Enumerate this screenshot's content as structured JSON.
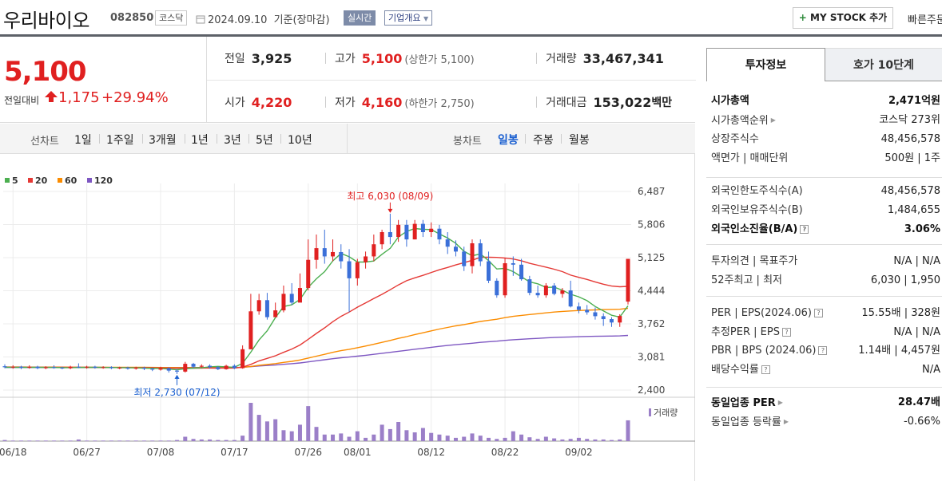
{
  "header": {
    "company_name": "우리바이오",
    "stock_code": "082850",
    "market": "코스닥",
    "date": "2024.09.10",
    "date_suffix": "기준(장마감)",
    "realtime_label": "실시간",
    "overview_label": "기업개요",
    "mystock_label": "MY STOCK 추가",
    "quick_label": "빠른주문"
  },
  "summary": {
    "price": "5,100",
    "change_label": "전일대비",
    "change_amount": "1,175",
    "change_rate": "+29.94%",
    "prev_close": {
      "label": "전일",
      "value": "3,925"
    },
    "high": {
      "label": "고가",
      "value": "5,100",
      "sub": "(상한가 5,100)"
    },
    "volume": {
      "label": "거래량",
      "value": "33,467,341"
    },
    "open": {
      "label": "시가",
      "value": "4,220"
    },
    "low": {
      "label": "저가",
      "value": "4,160",
      "sub": "(하한가 2,750)"
    },
    "amount": {
      "label": "거래대금",
      "value": "153,022",
      "unit": "백만"
    }
  },
  "period_tabs": {
    "label": "선차트",
    "items": [
      "1일",
      "1주일",
      "3개월",
      "1년",
      "3년",
      "5년",
      "10년"
    ]
  },
  "candle_tabs": {
    "label": "봉차트",
    "items": [
      "일봉",
      "주봉",
      "월봉"
    ],
    "active": 0
  },
  "chart_data": {
    "type": "candlestick",
    "legend": [
      {
        "name": "5",
        "color": "#4caf50"
      },
      {
        "name": "20",
        "color": "#e53935"
      },
      {
        "name": "60",
        "color": "#fb8c00"
      },
      {
        "name": "120",
        "color": "#7e57c2"
      }
    ],
    "y_ticks": [
      "6,487",
      "5,806",
      "5,125",
      "4,444",
      "3,762",
      "3,081",
      "2,400"
    ],
    "ylim": [
      2400,
      6487
    ],
    "x_ticks": [
      "06/18",
      "06/27",
      "07/08",
      "07/17",
      "07/26",
      "08/01",
      "08/12",
      "08/22",
      "09/02"
    ],
    "high_annotation": "최고 6,030 (08/09)",
    "low_annotation": "최저 2,730 (07/12)",
    "volume_label": "거래량",
    "colors": {
      "up": "#e02020",
      "down": "#3a6fd8",
      "volume": "#9b7fc8"
    },
    "candles": [
      [
        2890,
        2870,
        2930,
        2850
      ],
      [
        2870,
        2880,
        2910,
        2840
      ],
      [
        2880,
        2860,
        2900,
        2830
      ],
      [
        2860,
        2880,
        2910,
        2840
      ],
      [
        2880,
        2850,
        2900,
        2830
      ],
      [
        2850,
        2870,
        2890,
        2830
      ],
      [
        2870,
        2860,
        2910,
        2840
      ],
      [
        2860,
        2850,
        2880,
        2830
      ],
      [
        2850,
        2880,
        2900,
        2830
      ],
      [
        2880,
        2870,
        2950,
        2850
      ],
      [
        2870,
        2880,
        2900,
        2840
      ],
      [
        2880,
        2860,
        2900,
        2840
      ],
      [
        2860,
        2870,
        2890,
        2840
      ],
      [
        2870,
        2850,
        2890,
        2830
      ],
      [
        2850,
        2860,
        2880,
        2830
      ],
      [
        2860,
        2840,
        2880,
        2820
      ],
      [
        2840,
        2860,
        2880,
        2820
      ],
      [
        2860,
        2840,
        2880,
        2810
      ],
      [
        2840,
        2820,
        2860,
        2790
      ],
      [
        2820,
        2850,
        2880,
        2800
      ],
      [
        2850,
        2800,
        2870,
        2760
      ],
      [
        2800,
        2780,
        2830,
        2730
      ],
      [
        2780,
        2940,
        2980,
        2760
      ],
      [
        2940,
        2880,
        2960,
        2850
      ],
      [
        2880,
        2900,
        2930,
        2860
      ],
      [
        2900,
        2870,
        2930,
        2840
      ],
      [
        2870,
        2830,
        2890,
        2810
      ],
      [
        2830,
        2900,
        2920,
        2820
      ],
      [
        2900,
        2850,
        2930,
        2830
      ],
      [
        2850,
        3240,
        3320,
        2840
      ],
      [
        3240,
        4020,
        4380,
        3240
      ],
      [
        4020,
        4250,
        4380,
        3950
      ],
      [
        4250,
        3900,
        4400,
        3850
      ],
      [
        3900,
        4040,
        4200,
        3950
      ],
      [
        4040,
        4380,
        4550,
        4000
      ],
      [
        4380,
        4200,
        4600,
        4150
      ],
      [
        4200,
        4500,
        4800,
        4300
      ],
      [
        4500,
        5080,
        5500,
        4450
      ],
      [
        5080,
        5320,
        5600,
        4900
      ],
      [
        5320,
        5150,
        5700,
        5000
      ],
      [
        5150,
        5240,
        5500,
        5050
      ],
      [
        5240,
        5050,
        5400,
        4900
      ],
      [
        5050,
        4700,
        5300,
        4000
      ],
      [
        4700,
        5030,
        5100,
        4550
      ],
      [
        5030,
        5150,
        5250,
        4900
      ],
      [
        5150,
        5400,
        5600,
        5050
      ],
      [
        5400,
        5650,
        5700,
        5300
      ],
      [
        5650,
        5550,
        6030,
        5400
      ],
      [
        5550,
        5800,
        5900,
        5450
      ],
      [
        5800,
        5500,
        5900,
        5350
      ],
      [
        5500,
        5820,
        5900,
        5500
      ],
      [
        5820,
        5650,
        5900,
        5550
      ],
      [
        5650,
        5720,
        5850,
        5550
      ],
      [
        5720,
        5500,
        5800,
        5400
      ],
      [
        5500,
        5350,
        5650,
        5200
      ],
      [
        5350,
        5250,
        5480,
        5150
      ],
      [
        5250,
        4950,
        5350,
        4850
      ],
      [
        4950,
        5420,
        5500,
        4800
      ],
      [
        5420,
        5050,
        5500,
        4950
      ],
      [
        5050,
        4650,
        5250,
        4600
      ],
      [
        4650,
        4350,
        4700,
        4300
      ],
      [
        4350,
        5010,
        5120,
        4300
      ],
      [
        5010,
        4980,
        5150,
        4750
      ],
      [
        4980,
        4680,
        5100,
        4650
      ],
      [
        4680,
        4400,
        4750,
        4350
      ],
      [
        4400,
        4350,
        4550,
        4300
      ],
      [
        4350,
        4550,
        4600,
        4300
      ],
      [
        4550,
        4380,
        4600,
        4350
      ],
      [
        4380,
        4450,
        4500,
        4300
      ],
      [
        4450,
        4120,
        4650,
        4100
      ],
      [
        4120,
        4050,
        4200,
        3980
      ],
      [
        4050,
        4000,
        4150,
        3950
      ],
      [
        4000,
        3920,
        4100,
        3850
      ],
      [
        3920,
        3860,
        3980,
        3720
      ],
      [
        3860,
        3790,
        3900,
        3700
      ],
      [
        3790,
        3925,
        3960,
        3700
      ],
      [
        4220,
        5100,
        5100,
        4160
      ]
    ],
    "ma5": [
      2870,
      2870,
      2868,
      2868,
      2870,
      2866,
      2866,
      2862,
      2862,
      2864,
      2868,
      2870,
      2866,
      2864,
      2862,
      2858,
      2856,
      2852,
      2846,
      2844,
      2832,
      2818,
      2838,
      2852,
      2860,
      2878,
      2888,
      2876,
      2870,
      2950,
      3180,
      3430,
      3620,
      3890,
      4118,
      4154,
      4264,
      4512,
      4690,
      4838,
      5058,
      5212,
      5142,
      5034,
      5034,
      5056,
      5194,
      5316,
      5550,
      5664,
      5724,
      5708,
      5702,
      5612,
      5528,
      5418,
      5256,
      5164,
      5200,
      5064,
      4892,
      4904,
      4838,
      4730,
      4628,
      4586,
      4512,
      4518,
      4454,
      4372,
      4318,
      4240,
      4120,
      4030,
      3940,
      3902,
      4134
    ],
    "ma20": [
      2872,
      2872,
      2872,
      2871,
      2871,
      2870,
      2869,
      2868,
      2868,
      2867,
      2867,
      2866,
      2866,
      2865,
      2864,
      2863,
      2861,
      2860,
      2858,
      2856,
      2853,
      2849,
      2850,
      2851,
      2852,
      2853,
      2852,
      2854,
      2853,
      2871,
      2929,
      3000,
      3051,
      3106,
      3176,
      3243,
      3328,
      3444,
      3566,
      3681,
      3806,
      3916,
      4006,
      4105,
      4194,
      4283,
      4370,
      4465,
      4564,
      4650,
      4710,
      4761,
      4820,
      4875,
      4922,
      4976,
      5022,
      5071,
      5133,
      5133,
      5130,
      5117,
      5096,
      5060,
      5008,
      4968,
      4930,
      4886,
      4837,
      4766,
      4719,
      4677,
      4626,
      4578,
      4541,
      4525,
      4533
    ],
    "ma60": [
      2875,
      2874,
      2874,
      2873,
      2873,
      2873,
      2872,
      2872,
      2871,
      2871,
      2870,
      2870,
      2870,
      2869,
      2869,
      2868,
      2867,
      2867,
      2866,
      2865,
      2864,
      2863,
      2862,
      2862,
      2862,
      2862,
      2861,
      2861,
      2861,
      2867,
      2886,
      2909,
      2926,
      2945,
      2970,
      2991,
      3018,
      3058,
      3098,
      3135,
      3176,
      3211,
      3238,
      3272,
      3306,
      3342,
      3381,
      3421,
      3463,
      3500,
      3542,
      3578,
      3618,
      3655,
      3689,
      3721,
      3748,
      3779,
      3812,
      3835,
      3858,
      3890,
      3916,
      3937,
      3954,
      3971,
      3989,
      4005,
      4019,
      4028,
      4036,
      4044,
      4050,
      4056,
      4059,
      4063,
      4082
    ],
    "ma120": [
      2864,
      2864,
      2864,
      2864,
      2864,
      2864,
      2864,
      2864,
      2864,
      2864,
      2864,
      2864,
      2864,
      2864,
      2864,
      2864,
      2864,
      2864,
      2864,
      2864,
      2864,
      2864,
      2864,
      2864,
      2864,
      2864,
      2864,
      2864,
      2864,
      2869,
      2881,
      2895,
      2905,
      2915,
      2930,
      2943,
      2958,
      2980,
      3002,
      3023,
      3045,
      3064,
      3079,
      3098,
      3116,
      3135,
      3156,
      3176,
      3198,
      3218,
      3240,
      3259,
      3280,
      3299,
      3317,
      3334,
      3348,
      3364,
      3381,
      3394,
      3406,
      3422,
      3435,
      3446,
      3455,
      3463,
      3473,
      3481,
      3488,
      3493,
      3498,
      3503,
      3506,
      3510,
      3512,
      3514,
      3524
    ],
    "volume": [
      2,
      1,
      1,
      1,
      1,
      1,
      1,
      1,
      1,
      3,
      1,
      1,
      1,
      1,
      1,
      1,
      1,
      1,
      1,
      1,
      1,
      2,
      8,
      4,
      3,
      3,
      2,
      2,
      2,
      10,
      70,
      48,
      36,
      40,
      20,
      18,
      30,
      64,
      26,
      12,
      12,
      14,
      8,
      18,
      6,
      12,
      30,
      22,
      35,
      20,
      16,
      24,
      15,
      12,
      10,
      6,
      8,
      14,
      10,
      6,
      4,
      6,
      18,
      12,
      7,
      4,
      8,
      5,
      3,
      4,
      6,
      4,
      3,
      3,
      2,
      3,
      38
    ],
    "x_tick_index": [
      1,
      10,
      19,
      28,
      37,
      43,
      52,
      61,
      70
    ]
  },
  "info_panel": {
    "tabs": [
      "투자정보",
      "호가 10단계"
    ],
    "market_cap": {
      "label": "시가총액",
      "value": "2,471억원"
    },
    "market_cap_rank": {
      "label": "시가총액순위",
      "value": "코스닥 273위"
    },
    "listed_shares": {
      "label": "상장주식수",
      "value": "48,456,578"
    },
    "face_value": {
      "label": "액면가 | 매매단위",
      "value": "500원 | 1주"
    },
    "foreign_limit": {
      "label": "외국인한도주식수(A)",
      "value": "48,456,578"
    },
    "foreign_holding": {
      "label": "외국인보유주식수(B)",
      "value": "1,484,655"
    },
    "foreign_ratio": {
      "label": "외국인소진율(B/A)",
      "value": "3.06%"
    },
    "opinion": {
      "label": "투자의견 | 목표주가",
      "value": "N/A | N/A"
    },
    "week52": {
      "label": "52주최고 | 최저",
      "value": "6,030 | 1,950"
    },
    "per_eps": {
      "label": "PER | EPS(2024.06)",
      "value": "15.55배 | 328원"
    },
    "est_per_eps": {
      "label": "추정PER | EPS",
      "value": "N/A | N/A"
    },
    "pbr_bps": {
      "label": "PBR | BPS (2024.06)",
      "value": "1.14배 | 4,457원"
    },
    "dividend": {
      "label": "배당수익률",
      "value": "N/A"
    },
    "industry_per": {
      "label": "동일업종 PER",
      "value": "28.47배"
    },
    "industry_rate": {
      "label": "동일업종 등락률",
      "value": "-0.66%"
    }
  }
}
